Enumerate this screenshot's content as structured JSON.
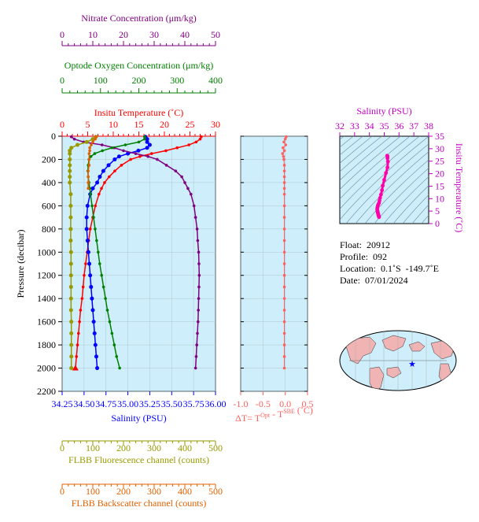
{
  "chart_data": [
    {
      "type": "line",
      "panel": "main-profile",
      "y_axis": {
        "label": "Pressure (decibar)",
        "range": [
          0,
          2200
        ],
        "inverted": true,
        "ticks": [
          "0",
          "200",
          "400",
          "600",
          "800",
          "1000",
          "1200",
          "1400",
          "1600",
          "1800",
          "2000",
          "2200"
        ]
      },
      "axes": {
        "nitrate": {
          "label": "Nitrate Concentration (μm/kg)",
          "range": [
            0,
            50
          ],
          "ticks": [
            "0",
            "10",
            "20",
            "30",
            "40",
            "50"
          ],
          "color": "#800080"
        },
        "oxygen": {
          "label": "Optode Oxygen Concentration (μm/kg)",
          "range": [
            0,
            400
          ],
          "ticks": [
            "0",
            "100",
            "200",
            "300",
            "400"
          ],
          "color": "#008000"
        },
        "temperature": {
          "label": "Insitu Temperature (˚C)",
          "range": [
            0,
            30
          ],
          "ticks": [
            "0",
            "5",
            "10",
            "15",
            "20",
            "25",
            "30"
          ],
          "color": "#ff0000"
        },
        "salinity": {
          "label": "Salinity (PSU)",
          "range": [
            34.25,
            36.0
          ],
          "ticks": [
            "34.25",
            "34.50",
            "34.75",
            "35.00",
            "35.25",
            "35.50",
            "35.75",
            "36.00"
          ],
          "color": "#0000ff"
        },
        "fluorescence": {
          "label": "FLBB Fluorescence channel (counts)",
          "range": [
            0,
            500
          ],
          "ticks": [
            "0",
            "100",
            "200",
            "300",
            "400",
            "500"
          ],
          "color": "#999900"
        },
        "backscatter": {
          "label": "FLBB Backscatter channel (counts)",
          "range": [
            0,
            500
          ],
          "ticks": [
            "0",
            "100",
            "200",
            "300",
            "400",
            "500"
          ],
          "color": "#e06000"
        }
      },
      "series": [
        {
          "axis": "temperature",
          "pressure": [
            5,
            25,
            50,
            75,
            100,
            125,
            150,
            175,
            200,
            250,
            300,
            350,
            400,
            450,
            500,
            600,
            700,
            800,
            900,
            1000,
            1100,
            1200,
            1300,
            1400,
            1500,
            1600,
            1700,
            1800,
            1900,
            2000
          ],
          "values": [
            27.2,
            27.0,
            26.2,
            24.8,
            22.5,
            20.3,
            17.5,
            15.2,
            13.4,
            11.6,
            10.3,
            9.2,
            8.3,
            7.7,
            7.2,
            6.5,
            6.0,
            5.5,
            5.2,
            4.9,
            4.6,
            4.3,
            4.1,
            3.9,
            3.6,
            3.4,
            3.2,
            3.0,
            2.8,
            2.6
          ]
        },
        {
          "axis": "salinity",
          "pressure": [
            5,
            25,
            50,
            75,
            100,
            125,
            150,
            175,
            200,
            250,
            300,
            350,
            400,
            450,
            500,
            600,
            700,
            800,
            900,
            1000,
            1100,
            1200,
            1300,
            1400,
            1500,
            1600,
            1700,
            1800,
            1900,
            2000
          ],
          "values": [
            35.2,
            35.22,
            35.22,
            35.25,
            35.22,
            35.12,
            35.0,
            34.9,
            34.85,
            34.78,
            34.72,
            34.68,
            34.65,
            34.6,
            34.57,
            34.54,
            34.53,
            34.53,
            34.54,
            34.55,
            34.56,
            34.57,
            34.58,
            34.59,
            34.6,
            34.61,
            34.62,
            34.63,
            34.64,
            34.65
          ]
        },
        {
          "axis": "nitrate",
          "pressure": [
            5,
            25,
            50,
            75,
            100,
            125,
            150,
            175,
            200,
            250,
            300,
            350,
            400,
            450,
            500,
            600,
            700,
            800,
            900,
            1000,
            1100,
            1200,
            1300,
            1400,
            1500,
            1600,
            1700,
            1800,
            1900,
            2000
          ],
          "values": [
            3,
            4,
            7,
            13,
            17,
            20,
            24,
            28,
            31,
            34,
            37,
            39,
            40,
            41,
            42,
            43,
            43.5,
            44,
            44.2,
            44.5,
            44.6,
            44.7,
            44.6,
            44.5,
            44.4,
            44.3,
            44.1,
            43.9,
            43.7,
            43.5
          ]
        },
        {
          "axis": "oxygen",
          "pressure": [
            5,
            25,
            50,
            75,
            100,
            125,
            150,
            175,
            200,
            250,
            300,
            350,
            400,
            450,
            500,
            600,
            700,
            800,
            900,
            1000,
            1100,
            1200,
            1300,
            1400,
            1500,
            1600,
            1700,
            1800,
            1900,
            2000
          ],
          "values": [
            215,
            215,
            200,
            165,
            130,
            105,
            85,
            75,
            70,
            68,
            67,
            68,
            70,
            72,
            74,
            78,
            82,
            86,
            90,
            94,
            98,
            103,
            108,
            113,
            118,
            124,
            130,
            136,
            142,
            150
          ]
        },
        {
          "axis": "fluorescence",
          "pressure": [
            5,
            25,
            50,
            75,
            100,
            125,
            150,
            200,
            250,
            300,
            350,
            400,
            500,
            600,
            700,
            800,
            900,
            1000,
            1100,
            1200,
            1300,
            1400,
            1500,
            1600,
            1700,
            1800,
            1900,
            2000
          ],
          "values": [
            110,
            100,
            80,
            50,
            30,
            25,
            25,
            25,
            25,
            25,
            25,
            25,
            28,
            28,
            28,
            28,
            28,
            29,
            29,
            29,
            29,
            29,
            29,
            30,
            30,
            30,
            30,
            30
          ]
        },
        {
          "axis": "backscatter",
          "pressure": [
            5,
            25,
            50,
            75,
            100,
            125,
            150,
            200,
            250,
            300,
            350,
            400,
            450
          ],
          "values": [
            110,
            108,
            100,
            95,
            90,
            90,
            88,
            88,
            88,
            85,
            85,
            85,
            85
          ]
        }
      ]
    },
    {
      "type": "scatter",
      "panel": "delta-t",
      "xlabel": "ΔT= T",
      "xlabel_sup1": "Opt",
      "xlabel_mid": " - T",
      "xlabel_sup2": "SBE",
      "xlabel_tail": " (˚C)",
      "xlim": [
        -1.0,
        0.5
      ],
      "x_ticks": [
        "-1.0",
        "-0.5",
        "0.0",
        "0.5"
      ],
      "pressure": [
        5,
        25,
        50,
        75,
        100,
        125,
        150,
        175,
        200,
        250,
        300,
        350,
        400,
        450,
        500,
        600,
        700,
        800,
        900,
        1000,
        1100,
        1200,
        1300,
        1400,
        1500,
        1600,
        1700,
        1800,
        1900,
        2000
      ],
      "values": [
        0.02,
        0.0,
        -0.03,
        0.01,
        -0.05,
        -0.02,
        -0.06,
        -0.04,
        -0.03,
        -0.02,
        -0.02,
        -0.02,
        -0.02,
        -0.02,
        -0.02,
        -0.02,
        -0.02,
        -0.02,
        -0.02,
        -0.02,
        -0.02,
        -0.02,
        -0.02,
        -0.02,
        -0.02,
        -0.02,
        -0.02,
        -0.02,
        -0.02,
        -0.02
      ],
      "color": "#ff6060"
    },
    {
      "type": "scatter",
      "panel": "ts-diagram",
      "xlabel": "Salinity (PSU)",
      "ylabel": "Insitu Temperature (˚C)",
      "xlim": [
        32,
        38
      ],
      "ylim": [
        0,
        35
      ],
      "x_ticks": [
        "32",
        "33",
        "34",
        "35",
        "36",
        "37",
        "38"
      ],
      "y_ticks": [
        "0",
        "5",
        "10",
        "15",
        "20",
        "25",
        "30",
        "35"
      ],
      "x": [
        35.2,
        35.22,
        35.22,
        35.25,
        35.22,
        35.12,
        35.0,
        34.9,
        34.85,
        34.78,
        34.72,
        34.68,
        34.65,
        34.6,
        34.57,
        34.54,
        34.53,
        34.53,
        34.54,
        34.55,
        34.56,
        34.57,
        34.58,
        34.59,
        34.6,
        34.61,
        34.62,
        34.63,
        34.64,
        34.65
      ],
      "y": [
        27.2,
        27.0,
        26.2,
        24.8,
        22.5,
        20.3,
        17.5,
        15.2,
        13.4,
        11.6,
        10.3,
        9.2,
        8.3,
        7.7,
        7.2,
        6.5,
        6.0,
        5.5,
        5.2,
        4.9,
        4.6,
        4.3,
        4.1,
        3.9,
        3.6,
        3.4,
        3.2,
        3.0,
        2.8,
        2.6
      ],
      "color": "#ff00aa"
    }
  ],
  "info": {
    "float_label": "Float:",
    "float_value": "20912",
    "profile_label": "Profile:",
    "profile_value": "092",
    "location_label": "Location:",
    "location_value": "0.1˚S  -149.7˚E",
    "date_label": "Date:",
    "date_value": "07/01/2024"
  },
  "map": {
    "marker": "★",
    "marker_color": "#0000ff"
  }
}
